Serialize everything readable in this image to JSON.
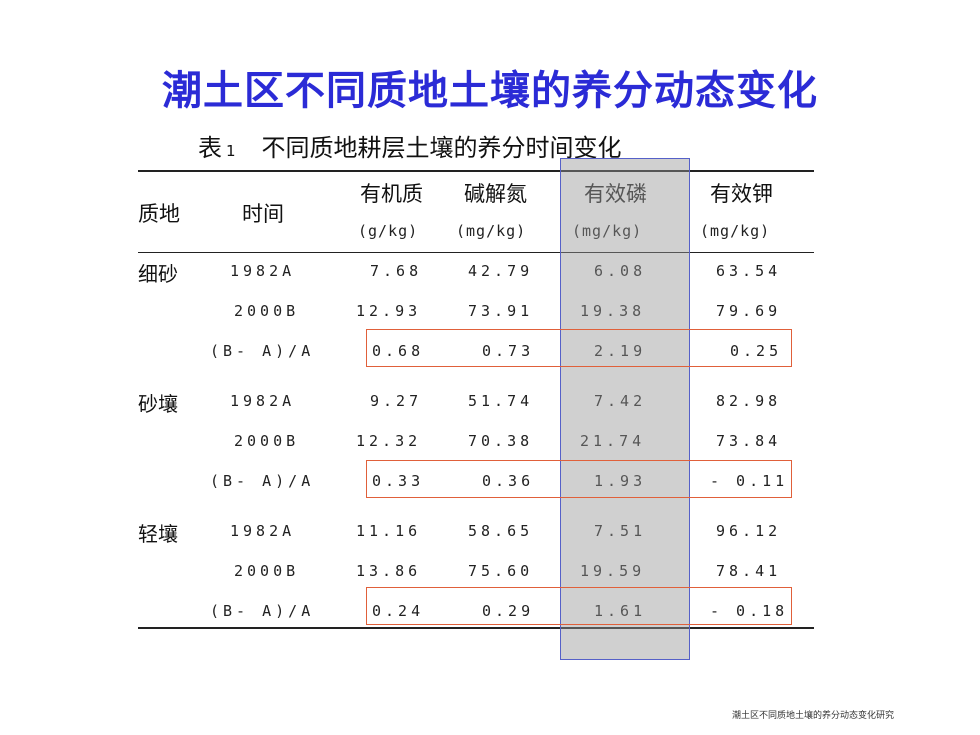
{
  "slide_title": "潮土区不同质地土壤的养分动态变化",
  "table": {
    "caption_prefix": "表",
    "caption_number": "1",
    "caption_text": "不同质地耕层土壤的养分时间变化",
    "headers": {
      "texture": "质地",
      "time": "时间",
      "organic": "有机质",
      "nitrogen": "碱解氮",
      "phosphorus": "有效磷",
      "potassium": "有效钾"
    },
    "units": {
      "organic": "(g/kg)",
      "nitrogen": "(mg/kg)",
      "phosphorus": "(mg/kg)",
      "potassium": "(mg/kg)"
    },
    "groups": [
      {
        "texture": "细砂",
        "rows": [
          {
            "time": "1982A",
            "organic": "7.68",
            "nitrogen": "42.79",
            "phosphorus": "6.08",
            "potassium": "63.54"
          },
          {
            "time": "2000B",
            "organic": "12.93",
            "nitrogen": "73.91",
            "phosphorus": "19.38",
            "potassium": "79.69"
          },
          {
            "time": "(B- A)/A",
            "organic": "0.68",
            "nitrogen": "0.73",
            "phosphorus": "2.19",
            "potassium": "0.25"
          }
        ]
      },
      {
        "texture": "砂壤",
        "rows": [
          {
            "time": "1982A",
            "organic": "9.27",
            "nitrogen": "51.74",
            "phosphorus": "7.42",
            "potassium": "82.98"
          },
          {
            "time": "2000B",
            "organic": "12.32",
            "nitrogen": "70.38",
            "phosphorus": "21.74",
            "potassium": "73.84"
          },
          {
            "time": "(B- A)/A",
            "organic": "0.33",
            "nitrogen": "0.36",
            "phosphorus": "1.93",
            "potassium": "- 0.11"
          }
        ]
      },
      {
        "texture": "轻壤",
        "rows": [
          {
            "time": "1982A",
            "organic": "11.16",
            "nitrogen": "58.65",
            "phosphorus": "7.51",
            "potassium": "96.12"
          },
          {
            "time": "2000B",
            "organic": "13.86",
            "nitrogen": "75.60",
            "phosphorus": "19.59",
            "potassium": "78.41"
          },
          {
            "time": "(B- A)/A",
            "organic": "0.24",
            "nitrogen": "0.29",
            "phosphorus": "1.61",
            "potassium": "- 0.18"
          }
        ]
      }
    ]
  },
  "paper_thumbnail": {
    "title": "潮土区不同质地土壤的养分动态变化研究"
  },
  "colors": {
    "title": "#2b2bd6",
    "highlight_fill": "#969696",
    "highlight_border": "#5560c8",
    "ratio_box": "#e0603a"
  }
}
